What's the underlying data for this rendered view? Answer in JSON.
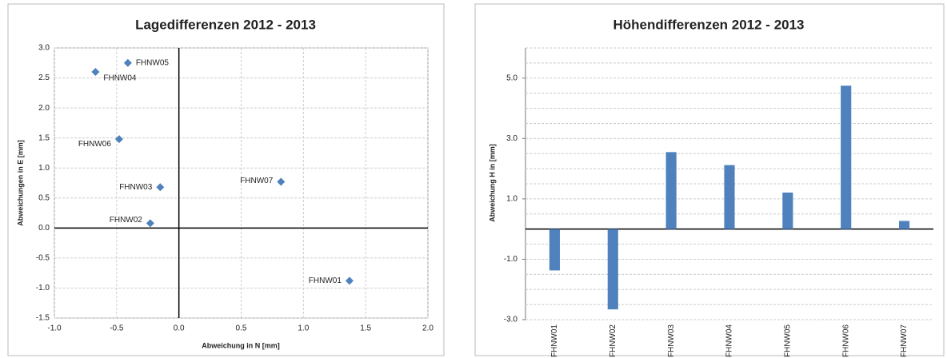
{
  "chart_data": [
    {
      "type": "scatter",
      "title": "Lagedifferenzen 2012 - 2013",
      "x_label": "Abweichung in N [mm]",
      "y_label": "Abweichungen in E [mm]",
      "color": "#4f81bd",
      "labels": [
        "FHNW01",
        "FHNW02",
        "FHNW03",
        "FHNW04",
        "FHNW05",
        "FHNW06",
        "FHNW07"
      ],
      "x": [
        1.37,
        -0.23,
        -0.15,
        -0.67,
        -0.41,
        -0.48,
        0.82
      ],
      "values": [
        -0.88,
        0.08,
        0.68,
        2.6,
        2.75,
        1.48,
        0.77
      ],
      "xlim": [
        -1.0,
        2.0
      ],
      "xticks": [
        {
          "value": -1,
          "label": "-1.0"
        },
        {
          "value": -0.5,
          "label": "-0.5"
        },
        {
          "value": 0,
          "label": "0.0"
        },
        {
          "value": 0.5,
          "label": "0.5"
        },
        {
          "value": 1,
          "label": "1.0"
        },
        {
          "value": 1.5,
          "label": "1.5"
        },
        {
          "value": 2,
          "label": "2.0"
        }
      ],
      "ylim": [
        -1.5,
        3.0
      ],
      "yticks": [
        {
          "value": -1.5,
          "label": "-1.5"
        },
        {
          "value": -1,
          "label": "-1.0"
        },
        {
          "value": -0.5,
          "label": "-0.5"
        },
        {
          "value": 0,
          "label": "0.0"
        },
        {
          "value": 0.5,
          "label": "0.5"
        },
        {
          "value": 1,
          "label": "1.0"
        },
        {
          "value": 1.5,
          "label": "1.5"
        },
        {
          "value": 2,
          "label": "2.0"
        },
        {
          "value": 2.5,
          "label": "2.5"
        },
        {
          "value": 3,
          "label": "3.0"
        }
      ],
      "grid": true
    },
    {
      "type": "bar",
      "title": "Höhendifferenzen  2012 - 2013",
      "y_label": "Abweichung H in [mm]",
      "color": "#4f81bd",
      "categories": [
        "FHNW01",
        "FHNW02",
        "FHNW03",
        "FHNW04",
        "FHNW05",
        "FHNW06",
        "FHNW07"
      ],
      "values": [
        -1.37,
        -2.66,
        2.55,
        2.12,
        1.21,
        4.75,
        0.27
      ],
      "ylim": [
        -3.0,
        6.0
      ],
      "yticks": [
        {
          "value": -3,
          "label": "-3.0"
        },
        {
          "value": -1,
          "label": "-1.0"
        },
        {
          "value": 1,
          "label": "1.0"
        },
        {
          "value": 3,
          "label": "3.0"
        },
        {
          "value": 5,
          "label": "5.0"
        }
      ],
      "minor_grid_step": 0.5,
      "grid": true
    }
  ]
}
